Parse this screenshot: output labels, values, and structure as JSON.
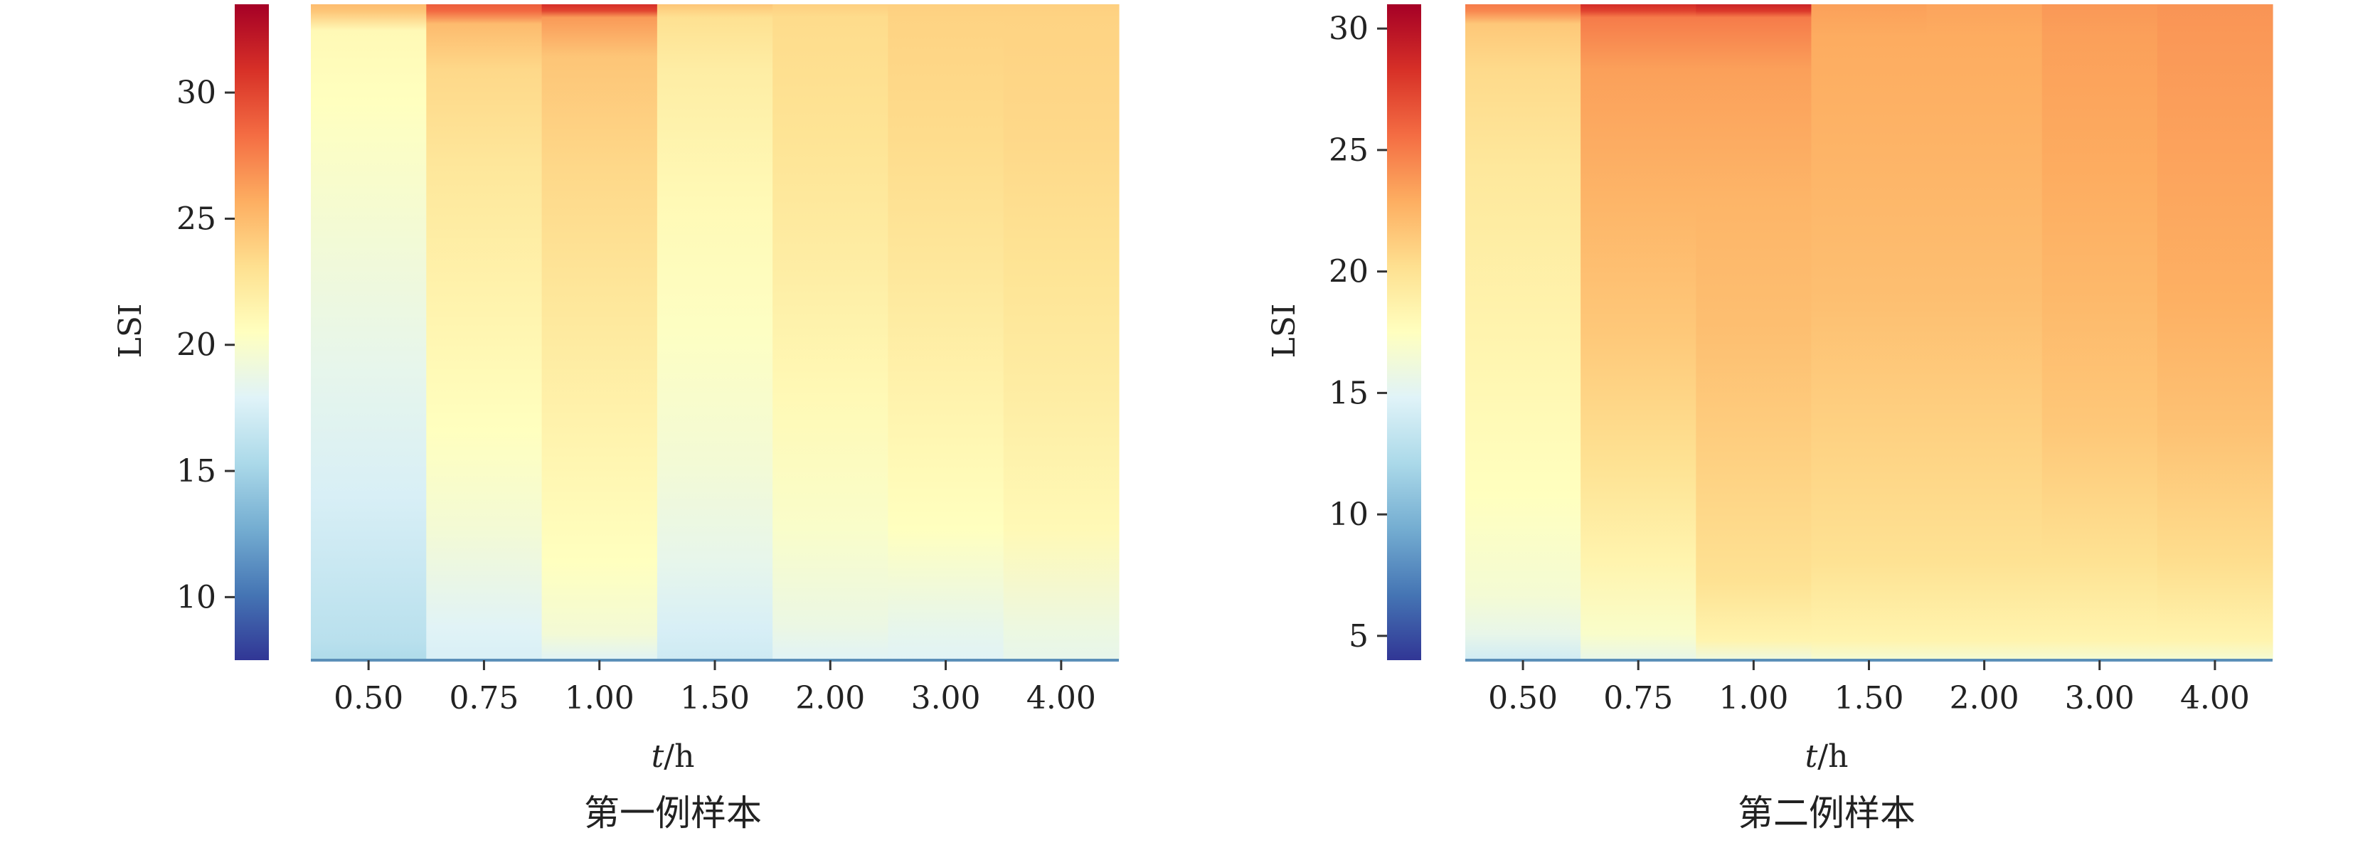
{
  "colormap": {
    "name": "spectral-reversed",
    "stops": [
      "#313695",
      "#4575b4",
      "#74add1",
      "#abd9e9",
      "#e0f3f8",
      "#ffffbf",
      "#fee090",
      "#fdae61",
      "#f46d43",
      "#d73027",
      "#a50026"
    ]
  },
  "chart_data": [
    {
      "type": "heatmap",
      "caption": "第一例样本",
      "xlabel": "t/h",
      "ylabel": "LSI",
      "categories": [
        "0.50",
        "0.75",
        "1.00",
        "1.50",
        "2.00",
        "3.00",
        "4.00"
      ],
      "ylim": [
        7.5,
        33.5
      ],
      "colorbar": {
        "range": [
          7.5,
          33.5
        ],
        "ticks": [
          "10",
          "15",
          "20",
          "25",
          "30"
        ]
      },
      "columns": [
        {
          "label": "0.50",
          "profile": [
            [
              0.0,
              15.5
            ],
            [
              0.03,
              16.0
            ],
            [
              0.1,
              16.5
            ],
            [
              0.25,
              17.5
            ],
            [
              0.45,
              18.5
            ],
            [
              0.65,
              19.5
            ],
            [
              0.85,
              20.5
            ],
            [
              0.96,
              21.0
            ],
            [
              0.99,
              24.5
            ],
            [
              1.0,
              25.0
            ]
          ]
        },
        {
          "label": "0.75",
          "profile": [
            [
              0.0,
              17.5
            ],
            [
              0.05,
              18.0
            ],
            [
              0.2,
              19.5
            ],
            [
              0.35,
              20.5
            ],
            [
              0.55,
              21.5
            ],
            [
              0.75,
              22.5
            ],
            [
              0.9,
              23.5
            ],
            [
              0.97,
              25.0
            ],
            [
              0.99,
              28.5
            ],
            [
              1.0,
              29.0
            ]
          ]
        },
        {
          "label": "1.00",
          "profile": [
            [
              0.0,
              18.0
            ],
            [
              0.04,
              19.5
            ],
            [
              0.15,
              20.5
            ],
            [
              0.35,
              21.5
            ],
            [
              0.55,
              22.5
            ],
            [
              0.75,
              23.5
            ],
            [
              0.92,
              24.5
            ],
            [
              0.98,
              26.5
            ],
            [
              0.99,
              30.0
            ],
            [
              1.0,
              31.0
            ]
          ]
        },
        {
          "label": "1.50",
          "profile": [
            [
              0.0,
              17.0
            ],
            [
              0.05,
              17.5
            ],
            [
              0.15,
              18.5
            ],
            [
              0.3,
              19.5
            ],
            [
              0.5,
              20.3
            ],
            [
              0.7,
              21.0
            ],
            [
              0.9,
              22.0
            ],
            [
              0.98,
              23.0
            ],
            [
              1.0,
              24.5
            ]
          ]
        },
        {
          "label": "2.00",
          "profile": [
            [
              0.0,
              18.0
            ],
            [
              0.05,
              18.8
            ],
            [
              0.2,
              20.0
            ],
            [
              0.4,
              21.0
            ],
            [
              0.6,
              22.0
            ],
            [
              0.8,
              22.8
            ],
            [
              0.98,
              23.3
            ],
            [
              1.0,
              24.0
            ]
          ]
        },
        {
          "label": "3.00",
          "profile": [
            [
              0.0,
              18.0
            ],
            [
              0.05,
              18.5
            ],
            [
              0.2,
              20.5
            ],
            [
              0.4,
              21.5
            ],
            [
              0.6,
              22.5
            ],
            [
              0.8,
              23.3
            ],
            [
              0.98,
              23.8
            ],
            [
              1.0,
              24.0
            ]
          ]
        },
        {
          "label": "4.00",
          "profile": [
            [
              0.0,
              18.5
            ],
            [
              0.05,
              19.0
            ],
            [
              0.2,
              21.0
            ],
            [
              0.4,
              22.0
            ],
            [
              0.6,
              22.8
            ],
            [
              0.8,
              23.5
            ],
            [
              0.98,
              23.8
            ],
            [
              1.0,
              24.0
            ]
          ]
        }
      ]
    },
    {
      "type": "heatmap",
      "caption": "第二例样本",
      "xlabel": "t/h",
      "ylabel": "LSI",
      "categories": [
        "0.50",
        "0.75",
        "1.00",
        "1.50",
        "2.00",
        "3.00",
        "4.00"
      ],
      "ylim": [
        4.0,
        31.0
      ],
      "colorbar": {
        "range": [
          4.0,
          31.0
        ],
        "ticks": [
          "5",
          "10",
          "15",
          "20",
          "25",
          "30"
        ]
      },
      "columns": [
        {
          "label": "0.50",
          "profile": [
            [
              0.0,
              14.0
            ],
            [
              0.04,
              15.5
            ],
            [
              0.1,
              16.5
            ],
            [
              0.25,
              17.5
            ],
            [
              0.5,
              18.5
            ],
            [
              0.75,
              19.5
            ],
            [
              0.9,
              20.5
            ],
            [
              0.97,
              21.5
            ],
            [
              0.99,
              24.5
            ],
            [
              1.0,
              25.0
            ]
          ]
        },
        {
          "label": "0.75",
          "profile": [
            [
              0.0,
              15.5
            ],
            [
              0.04,
              17.0
            ],
            [
              0.15,
              18.5
            ],
            [
              0.3,
              20.0
            ],
            [
              0.5,
              21.5
            ],
            [
              0.7,
              22.5
            ],
            [
              0.9,
              23.5
            ],
            [
              0.98,
              25.0
            ],
            [
              0.99,
              27.5
            ],
            [
              1.0,
              28.5
            ]
          ]
        },
        {
          "label": "1.00",
          "profile": [
            [
              0.0,
              16.0
            ],
            [
              0.03,
              18.5
            ],
            [
              0.12,
              20.0
            ],
            [
              0.3,
              21.0
            ],
            [
              0.5,
              22.0
            ],
            [
              0.7,
              22.5
            ],
            [
              0.9,
              23.5
            ],
            [
              0.98,
              25.0
            ],
            [
              0.99,
              28.0
            ],
            [
              1.0,
              29.0
            ]
          ]
        },
        {
          "label": "1.50",
          "profile": [
            [
              0.0,
              16.5
            ],
            [
              0.03,
              18.5
            ],
            [
              0.15,
              20.0
            ],
            [
              0.35,
              21.0
            ],
            [
              0.55,
              22.0
            ],
            [
              0.75,
              22.5
            ],
            [
              0.95,
              23.0
            ],
            [
              1.0,
              23.5
            ]
          ]
        },
        {
          "label": "2.00",
          "profile": [
            [
              0.0,
              16.5
            ],
            [
              0.03,
              18.5
            ],
            [
              0.15,
              20.0
            ],
            [
              0.35,
              21.0
            ],
            [
              0.55,
              22.0
            ],
            [
              0.75,
              22.5
            ],
            [
              0.95,
              23.0
            ],
            [
              1.0,
              23.3
            ]
          ]
        },
        {
          "label": "3.00",
          "profile": [
            [
              0.0,
              16.5
            ],
            [
              0.03,
              18.5
            ],
            [
              0.15,
              20.0
            ],
            [
              0.35,
              21.5
            ],
            [
              0.55,
              22.3
            ],
            [
              0.75,
              23.0
            ],
            [
              0.95,
              23.5
            ],
            [
              1.0,
              23.8
            ]
          ]
        },
        {
          "label": "4.00",
          "profile": [
            [
              0.0,
              16.5
            ],
            [
              0.03,
              18.5
            ],
            [
              0.15,
              20.3
            ],
            [
              0.35,
              21.8
            ],
            [
              0.55,
              22.8
            ],
            [
              0.75,
              23.3
            ],
            [
              0.95,
              23.8
            ],
            [
              1.0,
              24.0
            ]
          ]
        }
      ]
    }
  ]
}
